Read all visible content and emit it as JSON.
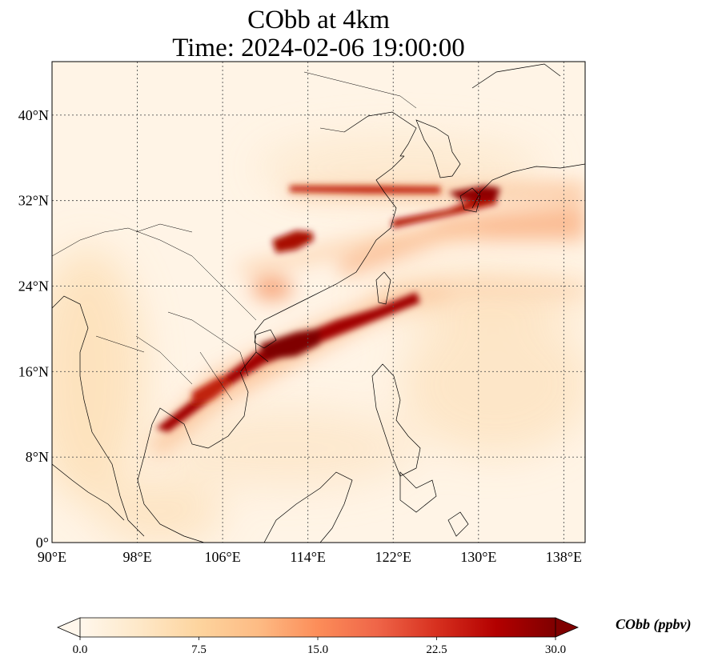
{
  "title": {
    "line1": "CObb at 4km",
    "line2": "Time: 2024-02-06 19:00:00"
  },
  "map": {
    "lon_range": [
      90,
      140
    ],
    "lat_range": [
      0,
      45
    ],
    "x_ticks": [
      "90°E",
      "98°E",
      "106°E",
      "114°E",
      "122°E",
      "130°E",
      "138°E"
    ],
    "y_ticks": [
      "0°",
      "8°N",
      "16°N",
      "24°N",
      "32°N",
      "40°N"
    ],
    "gridlines": true,
    "coastlines": true,
    "country_borders": true,
    "colormap": "OrRd",
    "plumes_description_note": null
  },
  "colorbar": {
    "label": "CObb (ppbv)",
    "ticks": [
      "0.0",
      "7.5",
      "15.0",
      "22.5",
      "30.0"
    ],
    "min": 0.0,
    "max": 30.0,
    "extend": "both",
    "colors": [
      "#fff7ec",
      "#fee8c8",
      "#fdd49e",
      "#fdbb84",
      "#fc8d59",
      "#ef6548",
      "#d7301f",
      "#b30000",
      "#7f0000"
    ]
  }
}
